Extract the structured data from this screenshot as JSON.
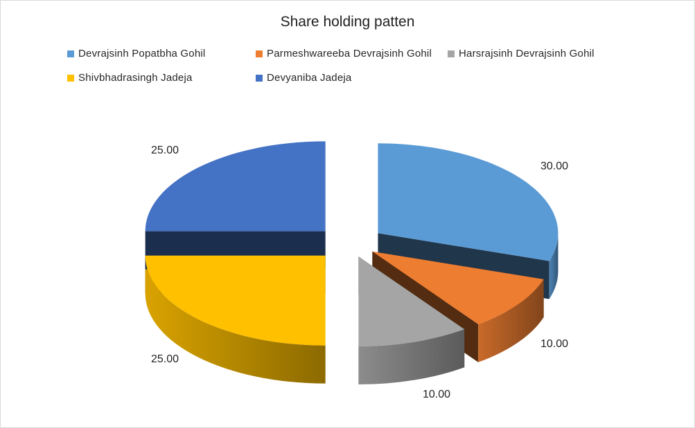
{
  "chart_data": {
    "type": "pie",
    "title": "Share holding patten",
    "legend_position": "top",
    "exploded": true,
    "three_d": true,
    "slices": [
      {
        "name": "Devrajsinh Popatbha Gohil",
        "value": 30.0,
        "label": "30.00",
        "color": "#5b9bd5"
      },
      {
        "name": "Parmeshwareeba Devrajsinh Gohil",
        "value": 10.0,
        "label": "10.00",
        "color": "#ed7d31"
      },
      {
        "name": "Harsrajsinh Devrajsinh Gohil",
        "value": 10.0,
        "label": "10.00",
        "color": "#a5a5a5"
      },
      {
        "name": "Shivbhadrasingh Jadeja",
        "value": 25.0,
        "label": "25.00",
        "color": "#ffc000"
      },
      {
        "name": "Devyaniba Jadeja",
        "value": 25.0,
        "label": "25.00",
        "color": "#4472c4"
      }
    ]
  }
}
